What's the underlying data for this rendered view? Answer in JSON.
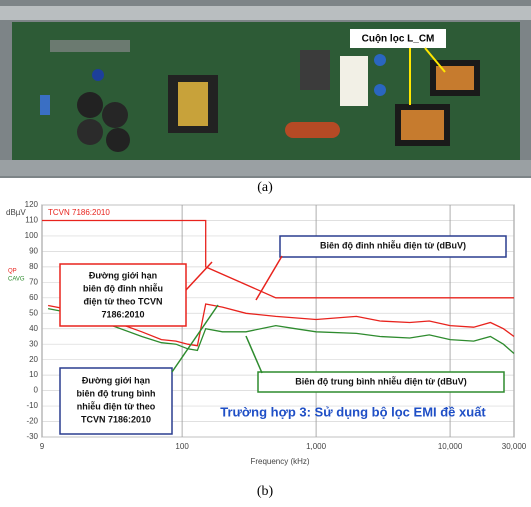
{
  "figure_a": {
    "callout": "Cuộn lọc L_CM",
    "caption": "(a)"
  },
  "chart_data": {
    "type": "line",
    "x_scale": "log",
    "y_label": "dBµV",
    "x_label": "Frequency (kHz)",
    "xlim": [
      9,
      30000
    ],
    "ylim": [
      -30,
      120
    ],
    "xticks": [
      9,
      100,
      {
        "value": 1000,
        "label": "1,000"
      },
      {
        "value": 10000,
        "label": "10,000"
      },
      {
        "value": 30000,
        "label": "30,000"
      }
    ],
    "yticks": [
      -30,
      -20,
      -10,
      0,
      10,
      20,
      30,
      40,
      50,
      60,
      70,
      80,
      90,
      100,
      110,
      120
    ],
    "grid": true,
    "series": [
      {
        "color": "#e8231d",
        "x": [
          9,
          150,
          150,
          500,
          30000
        ],
        "values": [
          110,
          110,
          80,
          60,
          60
        ]
      },
      {
        "color": "#e8231d",
        "x": [
          10,
          20,
          30,
          50,
          70,
          90,
          110,
          130,
          150,
          200,
          300,
          500,
          700,
          1000,
          2000,
          3000,
          5000,
          7000,
          10000,
          15000,
          20000,
          25000,
          30000
        ],
        "values": [
          55,
          50,
          45,
          38,
          33,
          32,
          30,
          29,
          56,
          54,
          50,
          48,
          47,
          46,
          48,
          45,
          44,
          45,
          42,
          41,
          44,
          40,
          35
        ]
      },
      {
        "color": "#2e8b2e",
        "x": [
          10,
          20,
          30,
          50,
          70,
          90,
          110,
          130,
          150,
          200,
          300,
          500,
          700,
          1000,
          2000,
          3000,
          5000,
          7000,
          10000,
          15000,
          20000,
          25000,
          30000
        ],
        "values": [
          53,
          48,
          42,
          35,
          31,
          30,
          27,
          26,
          40,
          38,
          38,
          42,
          40,
          38,
          37,
          35,
          34,
          36,
          33,
          32,
          35,
          30,
          24
        ]
      }
    ],
    "limit_label": "TCVN 7186:2010",
    "side_labels": [
      "QP",
      "CAVG"
    ],
    "annotations": {
      "peak": "Biên độ đỉnh nhiễu điện từ (dBuV)",
      "peak_limit": [
        "Đường giới hạn",
        "biên độ đỉnh nhiễu",
        "điện từ theo TCVN",
        "7186:2010"
      ],
      "average": "Biên độ trung bình nhiễu điện từ (dBuV)",
      "average_limit": [
        "Đường giới hạn",
        "biên độ trung bình",
        "nhiễu điện từ theo",
        "TCVN 7186:2010"
      ],
      "case": "Trường hợp 3: Sử dụng bộ lọc EMI đề xuất"
    },
    "caption": "(b)"
  }
}
